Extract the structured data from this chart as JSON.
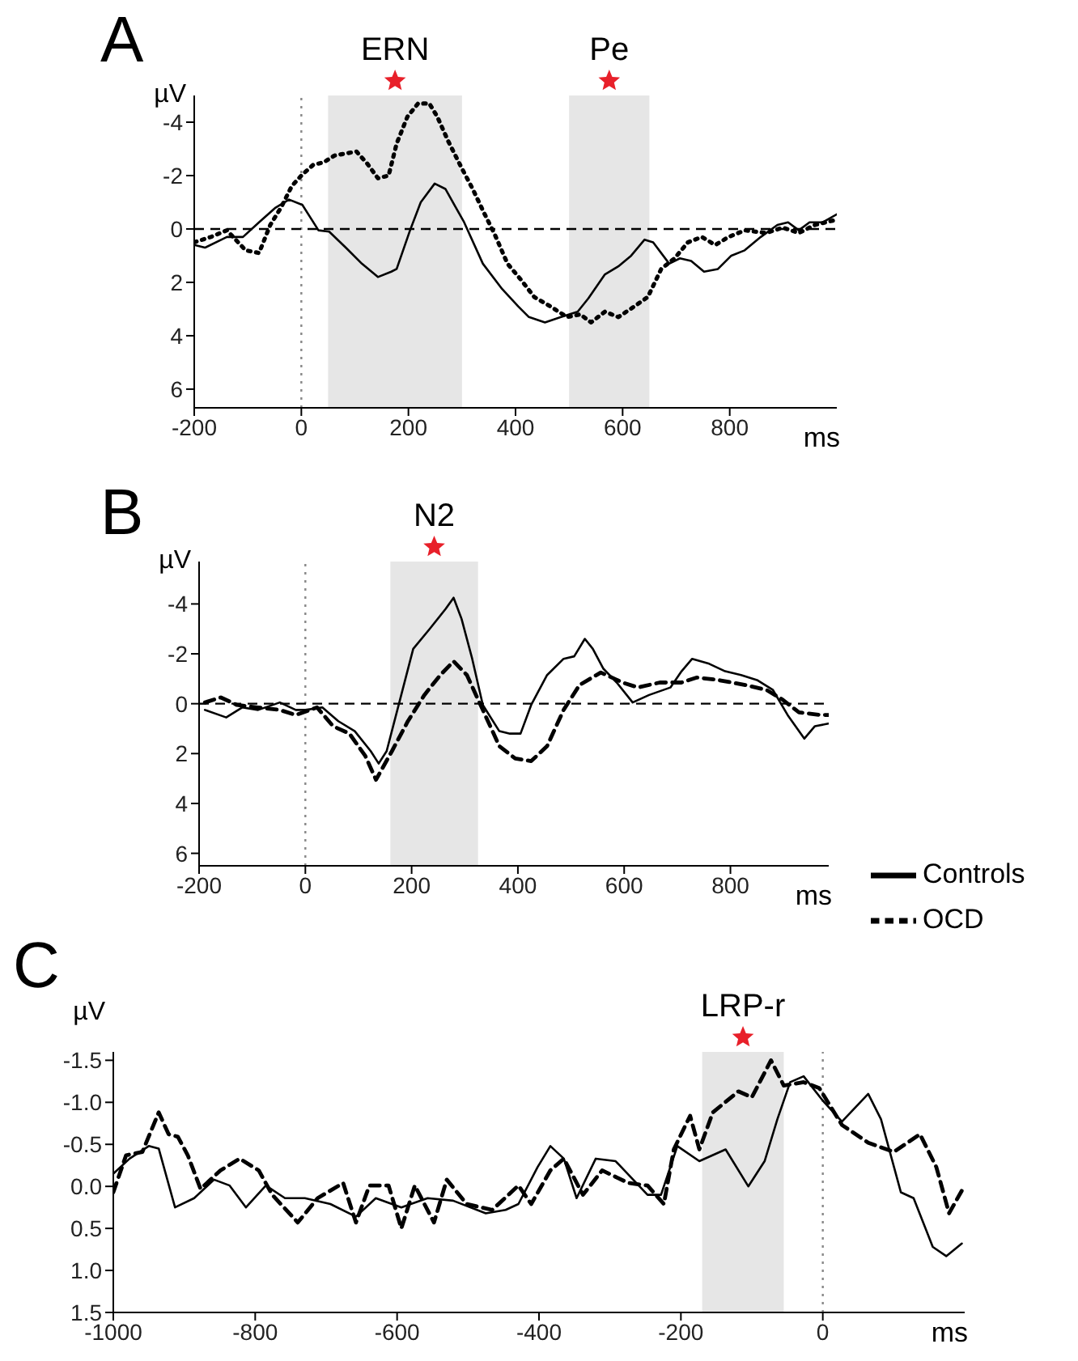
{
  "chart_data": [
    {
      "type": "line",
      "title": "A",
      "xlabel": "ms",
      "ylabel": "µV",
      "xlim": [
        -200,
        1000
      ],
      "xticks": [
        -200,
        0,
        200,
        400,
        600,
        800
      ],
      "ylim": [
        6.7,
        -5
      ],
      "yticks": [
        -4,
        -2,
        0,
        2,
        4,
        6
      ],
      "bands": [
        {
          "axis": "x",
          "from": 50,
          "to": 300,
          "label": "ERN",
          "color": "#e6e6e6"
        },
        {
          "axis": "x",
          "from": 500,
          "to": 650,
          "label": "Pe",
          "color": "#e6e6e6"
        }
      ],
      "ref_lines": [
        {
          "axis": "x",
          "value": 0,
          "color": "#888888",
          "line_style": "dotted"
        },
        {
          "axis": "y",
          "value": 0,
          "color": "#000000",
          "line_style": "dashed"
        }
      ],
      "series": [
        {
          "color": "#000000",
          "line_style": "solid",
          "x": [
            -200,
            -180,
            -139,
            -109,
            -79,
            -48,
            -23,
            2,
            32,
            52,
            83,
            113,
            143,
            168,
            178,
            203,
            223,
            249,
            269,
            304,
            339,
            375,
            405,
            425,
            455,
            485,
            516,
            536,
            567,
            592,
            616,
            641,
            657,
            687,
            707,
            728,
            752,
            778,
            803,
            828,
            858,
            889,
            909,
            929,
            949,
            974,
            1000
          ],
          "values": [
            0.6,
            0.7,
            0.3,
            0.3,
            -0.25,
            -0.8,
            -1.1,
            -0.9,
            0.05,
            0.1,
            0.7,
            1.3,
            1.8,
            1.6,
            1.5,
            0.05,
            -1.0,
            -1.7,
            -1.5,
            -0.25,
            1.3,
            2.25,
            2.9,
            3.3,
            3.5,
            3.3,
            3.1,
            2.6,
            1.7,
            1.4,
            1.0,
            0.4,
            0.5,
            1.3,
            1.1,
            1.2,
            1.6,
            1.5,
            1.0,
            0.8,
            0.3,
            -0.15,
            -0.25,
            0.05,
            -0.25,
            -0.25,
            -0.55
          ]
        },
        {
          "color": "#000000",
          "line_style": "dotted",
          "x": [
            -200,
            -169,
            -139,
            -104,
            -79,
            -58,
            -38,
            -18,
            0,
            22,
            42,
            62,
            103,
            123,
            143,
            163,
            178,
            198,
            218,
            239,
            254,
            274,
            299,
            320,
            340,
            360,
            385,
            410,
            435,
            465,
            496,
            521,
            541,
            567,
            592,
            622,
            647,
            672,
            697,
            722,
            748,
            773,
            798,
            828,
            868,
            899,
            929,
            959,
            1000
          ],
          "values": [
            0.5,
            0.3,
            0.05,
            0.8,
            0.9,
            -0.15,
            -0.8,
            -1.6,
            -2.0,
            -2.4,
            -2.5,
            -2.75,
            -2.9,
            -2.45,
            -1.9,
            -2.0,
            -3.2,
            -4.2,
            -4.7,
            -4.7,
            -4.2,
            -3.3,
            -2.3,
            -1.5,
            -0.65,
            0.15,
            1.3,
            1.9,
            2.55,
            2.9,
            3.3,
            3.2,
            3.5,
            3.1,
            3.3,
            2.9,
            2.55,
            1.5,
            1.1,
            0.5,
            0.3,
            0.6,
            0.3,
            0.05,
            0.15,
            -0.05,
            0.15,
            -0.15,
            -0.35
          ]
        }
      ]
    },
    {
      "type": "line",
      "title": "B",
      "xlabel": "ms",
      "ylabel": "µV",
      "xlim": [
        -200,
        985
      ],
      "xticks": [
        -200,
        0,
        200,
        400,
        600,
        800
      ],
      "ylim": [
        6.5,
        -5.7
      ],
      "yticks": [
        -4,
        -2,
        0,
        2,
        4,
        6
      ],
      "legend": "bottom right",
      "bands": [
        {
          "axis": "x",
          "from": 160,
          "to": 325,
          "label": "N2",
          "color": "#e6e6e6"
        }
      ],
      "ref_lines": [
        {
          "axis": "x",
          "value": 0,
          "color": "#888888",
          "line_style": "dotted"
        },
        {
          "axis": "y",
          "value": 0,
          "color": "#000000",
          "line_style": "dashed"
        }
      ],
      "series": [
        {
          "name": "Controls",
          "color": "#000000",
          "line_style": "solid",
          "x": [
            -189,
            -149,
            -119,
            -89,
            -48,
            -18,
            0,
            32,
            62,
            93,
            123,
            138,
            153,
            178,
            203,
            234,
            264,
            279,
            294,
            314,
            334,
            365,
            385,
            405,
            425,
            455,
            486,
            506,
            526,
            541,
            561,
            586,
            616,
            647,
            687,
            708,
            728,
            760,
            790,
            820,
            850,
            880,
            909,
            939,
            959,
            984
          ],
          "values": [
            0.25,
            0.55,
            0.15,
            0.25,
            -0.05,
            0.25,
            0.25,
            0.15,
            0.7,
            1.1,
            1.9,
            2.4,
            1.9,
            -0.15,
            -2.2,
            -3.0,
            -3.8,
            -4.25,
            -3.4,
            -1.8,
            0.05,
            1.1,
            1.2,
            1.2,
            0.05,
            -1.15,
            -1.8,
            -1.9,
            -2.6,
            -2.2,
            -1.4,
            -0.85,
            -0.05,
            -0.35,
            -0.65,
            -1.3,
            -1.8,
            -1.6,
            -1.3,
            -1.15,
            -0.95,
            -0.55,
            0.5,
            1.4,
            0.9,
            0.8
          ]
        },
        {
          "name": "OCD",
          "color": "#000000",
          "line_style": "dashed",
          "x": [
            -189,
            -159,
            -129,
            -89,
            -48,
            -18,
            22,
            52,
            83,
            113,
            133,
            163,
            193,
            224,
            254,
            279,
            304,
            334,
            365,
            395,
            425,
            455,
            486,
            516,
            556,
            597,
            626,
            667,
            708,
            737,
            777,
            828,
            868,
            899,
            929,
            969,
            984
          ],
          "values": [
            -0.05,
            -0.25,
            0.05,
            0.15,
            0.25,
            0.45,
            0.15,
            0.9,
            1.2,
            2.1,
            3.05,
            1.9,
            0.7,
            -0.35,
            -1.15,
            -1.7,
            -1.15,
            0.25,
            1.7,
            2.2,
            2.3,
            1.7,
            0.25,
            -0.75,
            -1.25,
            -0.85,
            -0.65,
            -0.85,
            -0.85,
            -1.05,
            -0.95,
            -0.75,
            -0.55,
            -0.15,
            0.35,
            0.45,
            0.45
          ]
        }
      ]
    },
    {
      "type": "line",
      "title": "C",
      "xlabel": "ms",
      "ylabel": "µV",
      "xlim": [
        -1000,
        200
      ],
      "xticks": [
        -1000,
        -800,
        -600,
        -400,
        -200,
        0
      ],
      "ylim": [
        1.5,
        -1.6
      ],
      "yticks": [
        -1.5,
        {
          "value": -1,
          "label": "-1.0"
        },
        -0.5,
        {
          "value": 0,
          "label": "0.0"
        },
        0.5,
        {
          "value": 1,
          "label": "1.0"
        },
        1.5
      ],
      "bands": [
        {
          "axis": "x",
          "from": -170,
          "to": -55,
          "label": "LRP-r",
          "color": "#e6e6e6"
        }
      ],
      "ref_lines": [
        {
          "axis": "x",
          "value": 0,
          "color": "#888888",
          "line_style": "dotted"
        }
      ],
      "series": [
        {
          "color": "#000000",
          "line_style": "solid",
          "x": [
            -1000,
            -977,
            -950,
            -936,
            -913,
            -886,
            -858,
            -836,
            -813,
            -785,
            -758,
            -730,
            -694,
            -658,
            -630,
            -594,
            -557,
            -521,
            -475,
            -447,
            -429,
            -402,
            -384,
            -365,
            -347,
            -320,
            -292,
            -247,
            -228,
            -205,
            -174,
            -137,
            -105,
            -82,
            -64,
            -46,
            -27,
            0,
            27,
            64,
            82,
            110,
            128,
            155,
            174,
            196
          ],
          "values": [
            -0.15,
            -0.33,
            -0.48,
            -0.45,
            0.25,
            0.14,
            -0.08,
            -0.01,
            0.25,
            -0.01,
            0.14,
            0.14,
            0.21,
            0.36,
            0.14,
            0.25,
            0.14,
            0.17,
            0.32,
            0.28,
            0.21,
            -0.23,
            -0.48,
            -0.33,
            0.14,
            -0.33,
            -0.3,
            0.1,
            0.1,
            -0.48,
            -0.3,
            -0.44,
            0,
            -0.3,
            -0.8,
            -1.24,
            -1.31,
            -1.02,
            -0.77,
            -1.1,
            -0.8,
            0.07,
            0.14,
            0.72,
            0.83,
            0.68
          ]
        },
        {
          "color": "#000000",
          "line_style": "dashed",
          "x": [
            -1000,
            -982,
            -959,
            -936,
            -922,
            -909,
            -895,
            -877,
            -849,
            -822,
            -795,
            -776,
            -740,
            -712,
            -676,
            -658,
            -639,
            -612,
            -594,
            -575,
            -548,
            -530,
            -502,
            -466,
            -429,
            -411,
            -384,
            -365,
            -338,
            -311,
            -274,
            -247,
            -224,
            -210,
            -187,
            -174,
            -155,
            -119,
            -100,
            -73,
            -55,
            -27,
            -5,
            27,
            64,
            100,
            137,
            160,
            178,
            200
          ],
          "values": [
            0.07,
            -0.37,
            -0.41,
            -0.88,
            -0.62,
            -0.59,
            -0.37,
            0.03,
            -0.19,
            -0.33,
            -0.19,
            0.1,
            0.43,
            0.14,
            -0.04,
            0.43,
            -0.01,
            -0.01,
            0.5,
            -0.01,
            0.43,
            -0.08,
            0.21,
            0.28,
            -0.01,
            0.21,
            -0.19,
            -0.33,
            0.1,
            -0.19,
            -0.04,
            -0.01,
            0.21,
            -0.44,
            -0.84,
            -0.44,
            -0.88,
            -1.13,
            -1.06,
            -1.5,
            -1.2,
            -1.24,
            -1.17,
            -0.73,
            -0.52,
            -0.41,
            -0.62,
            -0.23,
            0.32,
            -0.01
          ]
        }
      ]
    }
  ]
}
